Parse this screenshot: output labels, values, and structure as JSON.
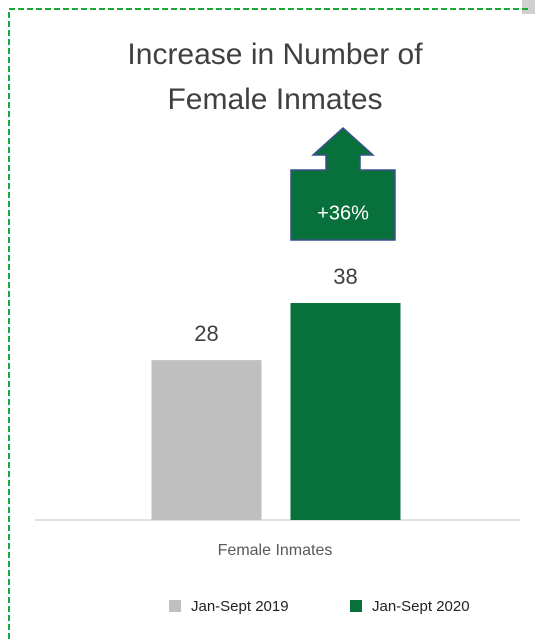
{
  "chart_data": {
    "type": "bar",
    "title": [
      "Increase in Number of",
      "Female Inmates"
    ],
    "categories": [
      "Female Inmates"
    ],
    "series": [
      {
        "name": "Jan-Sept 2019",
        "color": "#bfbfbf",
        "values": [
          28
        ]
      },
      {
        "name": "Jan-Sept 2020",
        "color": "#08703a",
        "values": [
          38
        ]
      }
    ],
    "annotation": "+36%"
  }
}
